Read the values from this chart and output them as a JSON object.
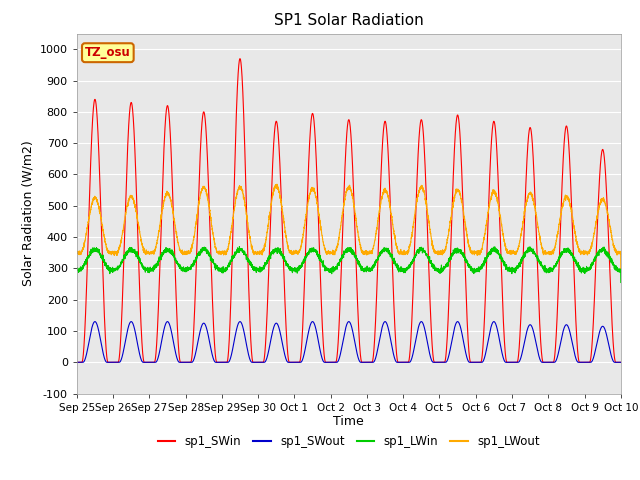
{
  "title": "SP1 Solar Radiation",
  "xlabel": "Time",
  "ylabel": "Solar Radiation (W/m2)",
  "ylim": [
    -100,
    1050
  ],
  "yticks": [
    -100,
    0,
    100,
    200,
    300,
    400,
    500,
    600,
    700,
    800,
    900,
    1000
  ],
  "tz_label": "TZ_osu",
  "colors": {
    "sp1_SWin": "#ff0000",
    "sp1_SWout": "#0000cc",
    "sp1_LWin": "#00cc00",
    "sp1_LWout": "#ffaa00"
  },
  "legend_labels": [
    "sp1_SWin",
    "sp1_SWout",
    "sp1_LWin",
    "sp1_LWout"
  ],
  "x_tick_labels": [
    "Sep 25",
    "Sep 26",
    "Sep 27",
    "Sep 28",
    "Sep 29",
    "Sep 30",
    "Oct 1",
    "Oct 2",
    "Oct 3",
    "Oct 4",
    "Oct 5",
    "Oct 6",
    "Oct 7",
    "Oct 8",
    "Oct 9",
    "Oct 10"
  ],
  "n_days": 15,
  "background_color": "#e8e8e8",
  "fig_background": "#ffffff",
  "SWin_peaks": [
    840,
    830,
    820,
    800,
    970,
    770,
    795,
    775,
    770,
    775,
    790,
    770,
    750,
    755,
    680
  ],
  "SWout_peaks": [
    130,
    130,
    130,
    125,
    130,
    125,
    130,
    130,
    130,
    130,
    130,
    130,
    120,
    120,
    115
  ],
  "LWout_peaks": [
    525,
    530,
    540,
    560,
    560,
    565,
    555,
    560,
    550,
    560,
    550,
    545,
    540,
    530,
    520
  ]
}
